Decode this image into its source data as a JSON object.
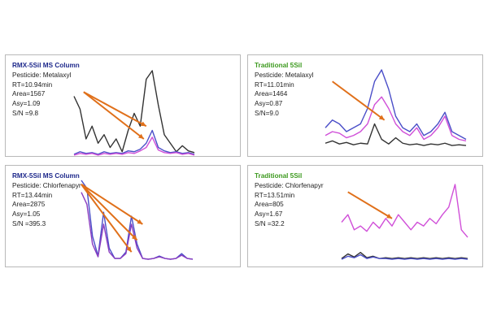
{
  "colors": {
    "rmx_title": "#1f2a8c",
    "trad_title": "#3d9a1f",
    "arrow": "#e0701a",
    "black_trace": "#333333",
    "blue_trace": "#4a4ec8",
    "magenta_trace": "#d04fd8",
    "purple_trace": "#8a3cc0",
    "border": "#b9b9b9"
  },
  "panels": [
    {
      "title": "RMX-5Sil MS Column",
      "title_color": "#1f2a8c",
      "pesticide": "Pesticide: Metalaxyl",
      "rt": "RT=10.94min",
      "area": "Area=1567",
      "asy": "Asy=1.09",
      "sn": "S/N =9.8"
    },
    {
      "title": "Traditional 5Sil",
      "title_color": "#3d9a1f",
      "pesticide": "Pesticide: Metalaxyl",
      "rt": "RT=11.01min",
      "area": "Area=1464",
      "asy": "Asy=0.87",
      "sn": "S/N=9.0"
    },
    {
      "title": "RMX-5Sil MS Column",
      "title_color": "#1f2a8c",
      "pesticide": "Pesticide: Chlorfenapyr",
      "rt": "RT=13.44min",
      "area": "Area=2875",
      "asy": "Asy=1.05",
      "sn": "S/N =395.3"
    },
    {
      "title": "Traditional 5Sil",
      "title_color": "#3d9a1f",
      "pesticide": "Pesticide: Chlorfenapyr",
      "rt": "RT=13.51min",
      "area": "Area=805",
      "asy": "Asy=1.67",
      "sn": "S/N =32.2"
    }
  ],
  "chart_data": [
    {
      "type": "line",
      "title": "RMX-5Sil MS Column",
      "x": [
        0,
        0.05,
        0.1,
        0.15,
        0.2,
        0.25,
        0.3,
        0.35,
        0.4,
        0.45,
        0.5,
        0.55,
        0.6,
        0.65,
        0.7,
        0.75,
        0.8,
        0.85,
        0.9,
        0.95,
        1
      ],
      "series": [
        {
          "color": "#333333",
          "values": [
            0.7,
            0.55,
            0.2,
            0.35,
            0.15,
            0.25,
            0.1,
            0.2,
            0.05,
            0.3,
            0.5,
            0.35,
            0.9,
            1.0,
            0.6,
            0.25,
            0.15,
            0.05,
            0.12,
            0.06,
            0.04
          ]
        },
        {
          "color": "#4a4ec8",
          "values": [
            0.02,
            0.05,
            0.03,
            0.04,
            0.02,
            0.05,
            0.03,
            0.04,
            0.03,
            0.06,
            0.05,
            0.08,
            0.15,
            0.3,
            0.1,
            0.06,
            0.04,
            0.05,
            0.03,
            0.04,
            0.02
          ]
        },
        {
          "color": "#d04fd8",
          "values": [
            0.01,
            0.03,
            0.02,
            0.03,
            0.01,
            0.03,
            0.02,
            0.03,
            0.02,
            0.04,
            0.03,
            0.06,
            0.1,
            0.22,
            0.07,
            0.04,
            0.03,
            0.04,
            0.02,
            0.03,
            0.01
          ]
        }
      ],
      "arrows": [
        {
          "from": [
            0.08,
            0.75
          ],
          "to": [
            0.6,
            0.35
          ]
        },
        {
          "from": [
            0.08,
            0.75
          ],
          "to": [
            0.58,
            0.2
          ]
        }
      ]
    },
    {
      "type": "line",
      "title": "Traditional 5Sil",
      "x": [
        0,
        0.05,
        0.1,
        0.15,
        0.2,
        0.25,
        0.3,
        0.35,
        0.4,
        0.45,
        0.5,
        0.55,
        0.6,
        0.65,
        0.7,
        0.75,
        0.8,
        0.85,
        0.9,
        0.95,
        1
      ],
      "series": [
        {
          "color": "#4a4ec8",
          "values": [
            0.25,
            0.35,
            0.3,
            0.2,
            0.25,
            0.3,
            0.5,
            0.85,
            1.0,
            0.75,
            0.4,
            0.25,
            0.2,
            0.3,
            0.15,
            0.2,
            0.3,
            0.45,
            0.2,
            0.15,
            0.1
          ]
        },
        {
          "color": "#d04fd8",
          "values": [
            0.15,
            0.2,
            0.18,
            0.12,
            0.15,
            0.2,
            0.3,
            0.55,
            0.65,
            0.5,
            0.3,
            0.2,
            0.15,
            0.25,
            0.1,
            0.15,
            0.25,
            0.4,
            0.15,
            0.1,
            0.08
          ]
        },
        {
          "color": "#333333",
          "values": [
            0.05,
            0.08,
            0.04,
            0.06,
            0.03,
            0.05,
            0.04,
            0.3,
            0.1,
            0.04,
            0.12,
            0.05,
            0.03,
            0.04,
            0.02,
            0.04,
            0.03,
            0.05,
            0.02,
            0.03,
            0.02
          ]
        }
      ],
      "arrows": [
        {
          "from": [
            0.05,
            0.85
          ],
          "to": [
            0.42,
            0.35
          ]
        }
      ]
    },
    {
      "type": "line",
      "title": "RMX-5Sil MS Column",
      "x": [
        0,
        0.05,
        0.1,
        0.15,
        0.2,
        0.25,
        0.3,
        0.35,
        0.4,
        0.45,
        0.5,
        0.55,
        0.6,
        0.65,
        0.7,
        0.75,
        0.8,
        0.85,
        0.9,
        0.95,
        1
      ],
      "series": [
        {
          "color": "#4a4ec8",
          "values": [
            1.0,
            0.9,
            0.3,
            0.05,
            0.6,
            0.15,
            0.02,
            0.02,
            0.1,
            0.55,
            0.2,
            0.02,
            0.01,
            0.02,
            0.05,
            0.02,
            0.01,
            0.02,
            0.08,
            0.02,
            0.01
          ]
        },
        {
          "color": "#8a3cc0",
          "values": [
            0.85,
            0.7,
            0.2,
            0.04,
            0.45,
            0.1,
            0.02,
            0.02,
            0.08,
            0.45,
            0.15,
            0.02,
            0.01,
            0.02,
            0.04,
            0.02,
            0.01,
            0.02,
            0.06,
            0.02,
            0.01
          ]
        }
      ],
      "arrows": [
        {
          "from": [
            0.0,
            0.95
          ],
          "to": [
            0.55,
            0.45
          ]
        },
        {
          "from": [
            0.0,
            0.95
          ],
          "to": [
            0.5,
            0.25
          ]
        },
        {
          "from": [
            0.0,
            0.95
          ],
          "to": [
            0.45,
            0.1
          ]
        }
      ]
    },
    {
      "type": "line",
      "title": "Traditional 5Sil",
      "x": [
        0,
        0.05,
        0.1,
        0.15,
        0.2,
        0.25,
        0.3,
        0.35,
        0.4,
        0.45,
        0.5,
        0.55,
        0.6,
        0.65,
        0.7,
        0.75,
        0.8,
        0.85,
        0.9,
        0.95,
        1
      ],
      "series": [
        {
          "color": "#d04fd8",
          "values": [
            0.5,
            0.6,
            0.4,
            0.45,
            0.38,
            0.5,
            0.42,
            0.55,
            0.45,
            0.6,
            0.5,
            0.4,
            0.5,
            0.45,
            0.55,
            0.48,
            0.6,
            0.7,
            1.0,
            0.4,
            0.3
          ]
        },
        {
          "color": "#333333",
          "values": [
            0.02,
            0.08,
            0.04,
            0.1,
            0.03,
            0.05,
            0.02,
            0.03,
            0.02,
            0.03,
            0.02,
            0.03,
            0.02,
            0.03,
            0.02,
            0.03,
            0.02,
            0.03,
            0.02,
            0.03,
            0.02
          ]
        },
        {
          "color": "#4a4ec8",
          "values": [
            0.01,
            0.05,
            0.03,
            0.07,
            0.02,
            0.04,
            0.02,
            0.02,
            0.01,
            0.02,
            0.01,
            0.02,
            0.01,
            0.02,
            0.01,
            0.02,
            0.01,
            0.02,
            0.01,
            0.02,
            0.01
          ]
        }
      ],
      "arrows": [
        {
          "from": [
            0.05,
            0.9
          ],
          "to": [
            0.4,
            0.55
          ]
        }
      ]
    }
  ]
}
